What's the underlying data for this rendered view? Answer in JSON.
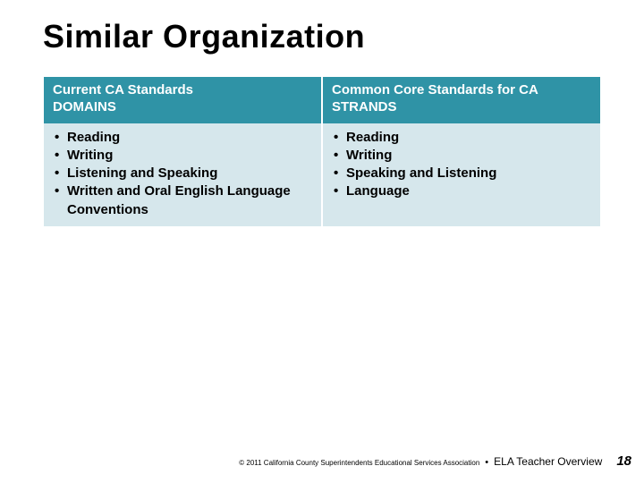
{
  "colors": {
    "header_bg": "#2f93a6",
    "body_bg": "#d6e7ec",
    "text": "#000000",
    "header_text": "#ffffff"
  },
  "title": "Similar Organization",
  "table": {
    "columns": [
      {
        "header_line1": "Current CA Standards",
        "header_line2": "DOMAINS"
      },
      {
        "header_line1": "Common Core Standards for CA",
        "header_line2": "STRANDS"
      }
    ],
    "left_items": [
      "Reading",
      "Writing",
      "Listening and Speaking",
      "Written and Oral English Language Conventions"
    ],
    "right_items": [
      "Reading",
      "Writing",
      "Speaking and Listening",
      "Language"
    ]
  },
  "footer": {
    "copyright": "© 2011 California County Superintendents Educational Services Association",
    "separator": "•",
    "section": "ELA Teacher Overview",
    "page_number": "18"
  }
}
